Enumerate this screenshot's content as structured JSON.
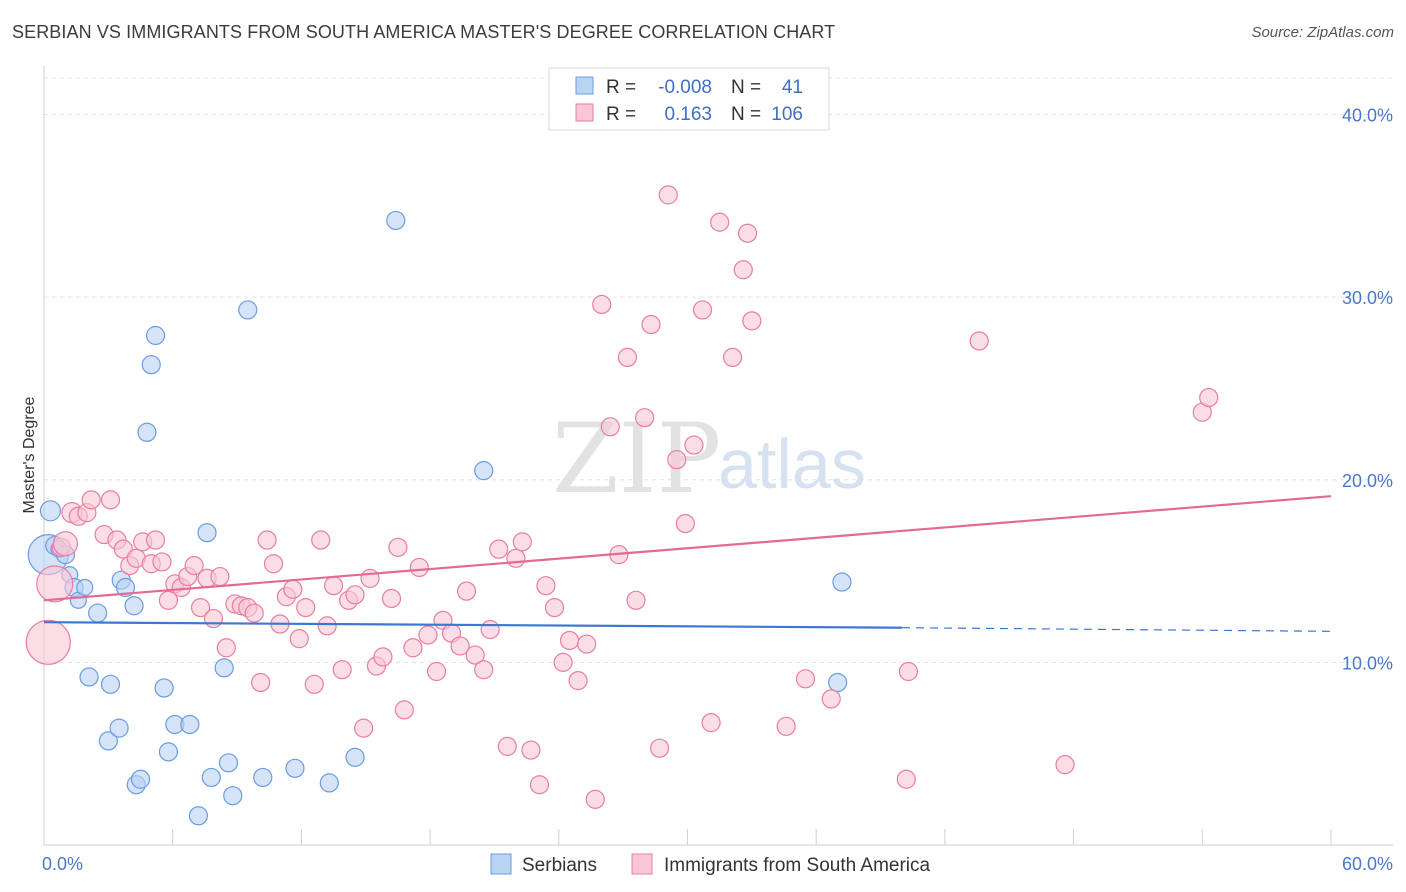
{
  "title": "SERBIAN VS IMMIGRANTS FROM SOUTH AMERICA MASTER'S DEGREE CORRELATION CHART",
  "source": "Source: ZipAtlas.com",
  "watermark": {
    "part1": "ZIP",
    "part2": "atlas"
  },
  "legend_box": {
    "rows": [
      {
        "r_label": "R =",
        "r_value": "-0.008",
        "n_label": "N =",
        "n_value": "41",
        "color": "#a8c8f0"
      },
      {
        "r_label": "R =",
        "r_value": "0.163",
        "n_label": "N =",
        "n_value": "106",
        "color": "#f7b8cc"
      }
    ]
  },
  "chart_data": {
    "type": "scatter",
    "title": "SERBIAN VS IMMIGRANTS FROM SOUTH AMERICA MASTER'S DEGREE CORRELATION CHART",
    "xlabel": "",
    "ylabel": "Master's Degree",
    "xlim": [
      0,
      60
    ],
    "ylim": [
      0,
      42
    ],
    "x_tick_labels": [
      "0.0%",
      "60.0%"
    ],
    "y_ticks": [
      10,
      20,
      30,
      40
    ],
    "y_tick_labels": [
      "10.0%",
      "20.0%",
      "30.0%",
      "40.0%"
    ],
    "grid": true,
    "legend": "top-center",
    "series": [
      {
        "name": "Serbians",
        "color": "#6a9de0",
        "fill": "#b9d2f3",
        "trend": {
          "x0": 0,
          "y0": 12.2,
          "x1": 40,
          "y1": 11.9,
          "dash_to": 60,
          "dash_y": 11.7
        },
        "points": [
          [
            0.2,
            15.9,
            20
          ],
          [
            0.3,
            18.3,
            10
          ],
          [
            0.5,
            16.4,
            9
          ],
          [
            0.7,
            16.2,
            8
          ],
          [
            1.0,
            15.9,
            9
          ],
          [
            1.2,
            14.8,
            8
          ],
          [
            1.4,
            14.1,
            9
          ],
          [
            1.6,
            13.4,
            8
          ],
          [
            1.9,
            14.1,
            8
          ],
          [
            2.1,
            9.2,
            9
          ],
          [
            2.5,
            12.7,
            9
          ],
          [
            3.0,
            5.7,
            9
          ],
          [
            3.1,
            8.8,
            9
          ],
          [
            3.5,
            6.4,
            9
          ],
          [
            3.6,
            14.5,
            9
          ],
          [
            3.8,
            14.1,
            9
          ],
          [
            4.3,
            3.3,
            9
          ],
          [
            4.2,
            13.1,
            9
          ],
          [
            4.5,
            3.6,
            9
          ],
          [
            4.8,
            22.6,
            9
          ],
          [
            5.0,
            26.3,
            9
          ],
          [
            5.2,
            27.9,
            9
          ],
          [
            5.6,
            8.6,
            9
          ],
          [
            5.8,
            5.1,
            9
          ],
          [
            6.1,
            6.6,
            9
          ],
          [
            6.8,
            6.6,
            9
          ],
          [
            7.2,
            1.6,
            9
          ],
          [
            7.6,
            17.1,
            9
          ],
          [
            7.8,
            3.7,
            9
          ],
          [
            8.4,
            9.7,
            9
          ],
          [
            8.6,
            4.5,
            9
          ],
          [
            8.8,
            2.7,
            9
          ],
          [
            9.5,
            29.3,
            9
          ],
          [
            10.2,
            3.7,
            9
          ],
          [
            11.7,
            4.2,
            9
          ],
          [
            13.3,
            3.4,
            9
          ],
          [
            14.5,
            4.8,
            9
          ],
          [
            16.4,
            34.2,
            9
          ],
          [
            20.5,
            20.5,
            9
          ],
          [
            37.2,
            14.4,
            9
          ],
          [
            37.0,
            8.9,
            9
          ]
        ]
      },
      {
        "name": "Immigrants from South America",
        "color": "#e87ea0",
        "fill": "#f8c6d5",
        "trend": {
          "x0": 0,
          "y0": 13.4,
          "x1": 60,
          "y1": 19.1
        },
        "points": [
          [
            0.2,
            11.1,
            22
          ],
          [
            0.5,
            14.3,
            18
          ],
          [
            0.8,
            16.3,
            9
          ],
          [
            1.0,
            16.5,
            12
          ],
          [
            1.3,
            18.2,
            10
          ],
          [
            1.6,
            18.0,
            9
          ],
          [
            2.0,
            18.2,
            9
          ],
          [
            2.2,
            18.9,
            9
          ],
          [
            2.8,
            17.0,
            9
          ],
          [
            3.1,
            18.9,
            9
          ],
          [
            3.4,
            16.7,
            9
          ],
          [
            3.7,
            16.2,
            9
          ],
          [
            4.0,
            15.3,
            9
          ],
          [
            4.3,
            15.7,
            9
          ],
          [
            4.6,
            16.6,
            9
          ],
          [
            5.0,
            15.4,
            9
          ],
          [
            5.2,
            16.7,
            9
          ],
          [
            5.5,
            15.5,
            9
          ],
          [
            5.8,
            13.4,
            9
          ],
          [
            6.1,
            14.3,
            9
          ],
          [
            6.4,
            14.1,
            9
          ],
          [
            6.7,
            14.7,
            9
          ],
          [
            7.0,
            15.3,
            9
          ],
          [
            7.3,
            13.0,
            9
          ],
          [
            7.6,
            14.6,
            9
          ],
          [
            7.9,
            12.4,
            9
          ],
          [
            8.2,
            14.7,
            9
          ],
          [
            8.5,
            10.8,
            9
          ],
          [
            8.9,
            13.2,
            9
          ],
          [
            9.2,
            13.1,
            9
          ],
          [
            9.5,
            13.0,
            9
          ],
          [
            9.8,
            12.7,
            9
          ],
          [
            10.1,
            8.9,
            9
          ],
          [
            10.4,
            16.7,
            9
          ],
          [
            10.7,
            15.4,
            9
          ],
          [
            11.0,
            12.1,
            9
          ],
          [
            11.3,
            13.6,
            9
          ],
          [
            11.6,
            14.0,
            9
          ],
          [
            11.9,
            11.3,
            9
          ],
          [
            12.2,
            13.0,
            9
          ],
          [
            12.6,
            8.8,
            9
          ],
          [
            12.9,
            16.7,
            9
          ],
          [
            13.2,
            12.0,
            9
          ],
          [
            13.5,
            14.2,
            9
          ],
          [
            13.9,
            9.6,
            9
          ],
          [
            14.2,
            13.4,
            9
          ],
          [
            14.5,
            13.7,
            9
          ],
          [
            14.9,
            6.4,
            9
          ],
          [
            15.2,
            14.6,
            9
          ],
          [
            15.5,
            9.8,
            9
          ],
          [
            15.8,
            10.3,
            9
          ],
          [
            16.2,
            13.5,
            9
          ],
          [
            16.5,
            16.3,
            9
          ],
          [
            16.8,
            7.4,
            9
          ],
          [
            17.2,
            10.8,
            9
          ],
          [
            17.5,
            15.2,
            9
          ],
          [
            17.9,
            11.5,
            9
          ],
          [
            18.3,
            9.5,
            9
          ],
          [
            18.6,
            12.3,
            9
          ],
          [
            19.0,
            11.6,
            9
          ],
          [
            19.4,
            10.9,
            9
          ],
          [
            19.7,
            13.9,
            9
          ],
          [
            20.1,
            10.4,
            9
          ],
          [
            20.5,
            9.6,
            9
          ],
          [
            20.8,
            11.8,
            9
          ],
          [
            21.2,
            16.2,
            9
          ],
          [
            21.6,
            5.4,
            9
          ],
          [
            22.0,
            15.7,
            9
          ],
          [
            22.3,
            16.6,
            9
          ],
          [
            22.7,
            5.2,
            9
          ],
          [
            23.1,
            3.3,
            9
          ],
          [
            23.4,
            14.2,
            9
          ],
          [
            23.8,
            13.0,
            9
          ],
          [
            24.2,
            10.0,
            9
          ],
          [
            24.5,
            11.2,
            9
          ],
          [
            24.9,
            9.0,
            9
          ],
          [
            25.3,
            11.0,
            9
          ],
          [
            25.7,
            2.5,
            9
          ],
          [
            26.0,
            29.6,
            9
          ],
          [
            26.4,
            22.9,
            9
          ],
          [
            26.8,
            15.9,
            9
          ],
          [
            27.2,
            26.7,
            9
          ],
          [
            27.6,
            13.4,
            9
          ],
          [
            28.0,
            23.4,
            9
          ],
          [
            28.3,
            28.5,
            9
          ],
          [
            28.7,
            5.3,
            9
          ],
          [
            29.1,
            35.6,
            9
          ],
          [
            29.5,
            21.1,
            9
          ],
          [
            29.9,
            17.6,
            9
          ],
          [
            30.3,
            21.9,
            9
          ],
          [
            30.7,
            29.3,
            9
          ],
          [
            31.1,
            6.7,
            9
          ],
          [
            31.5,
            34.1,
            9
          ],
          [
            32.1,
            26.7,
            9
          ],
          [
            32.6,
            31.5,
            9
          ],
          [
            32.8,
            33.5,
            9
          ],
          [
            33.0,
            28.7,
            9
          ],
          [
            34.6,
            6.5,
            9
          ],
          [
            35.5,
            9.1,
            9
          ],
          [
            36.7,
            8.0,
            9
          ],
          [
            40.2,
            3.6,
            9
          ],
          [
            40.3,
            9.5,
            9
          ],
          [
            43.6,
            27.6,
            9
          ],
          [
            47.6,
            4.4,
            9
          ],
          [
            54.0,
            23.7,
            9
          ],
          [
            54.3,
            24.5,
            9
          ]
        ]
      }
    ]
  }
}
